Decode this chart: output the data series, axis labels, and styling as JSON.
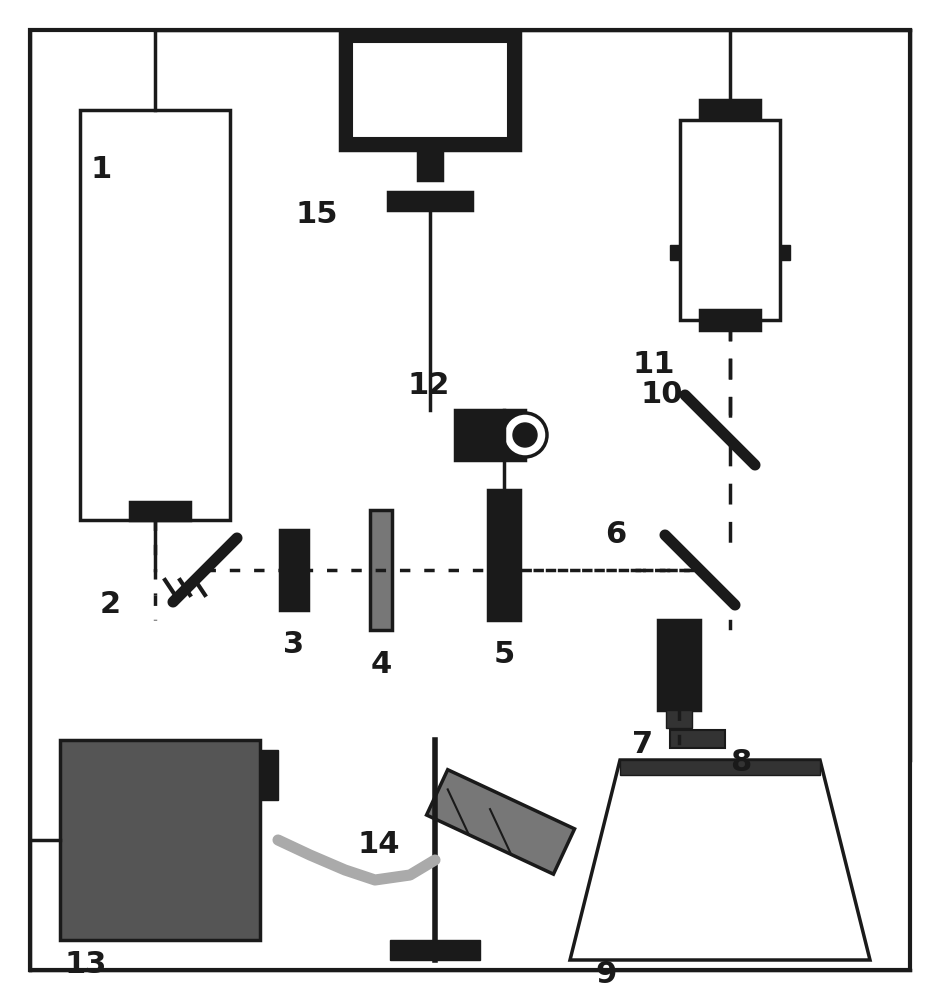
{
  "bg_color": "#ffffff",
  "border_color": "#000000",
  "dark_color": "#1a1a1a",
  "gray_color": "#555555",
  "light_gray": "#aaaaaa",
  "mid_gray": "#777777",
  "fig_width": 9.43,
  "fig_height": 10.0
}
